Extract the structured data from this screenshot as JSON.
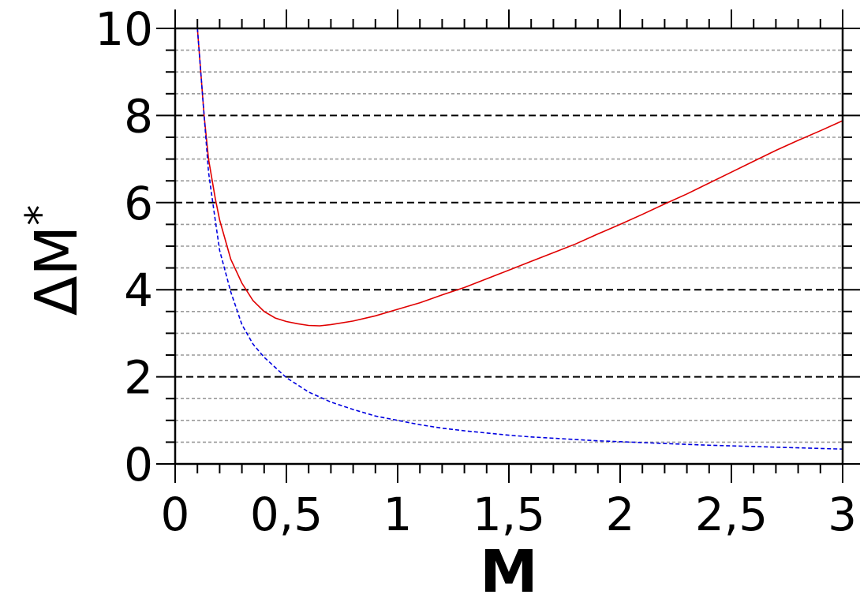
{
  "chart_data": {
    "type": "line",
    "xlabel": "M",
    "ylabel": "ΔM",
    "ylabel_superscript": "*",
    "xlim": [
      0,
      3
    ],
    "ylim": [
      0,
      10
    ],
    "x_ticks": [
      "0",
      "0,5",
      "1",
      "1,5",
      "2",
      "2,5",
      "3"
    ],
    "y_ticks": [
      "0",
      "2",
      "4",
      "6",
      "8",
      "10"
    ],
    "grid": {
      "major_y": [
        2,
        4,
        6,
        8
      ],
      "minor_y_step": 0.5
    },
    "series": [
      {
        "color": "#e00000",
        "style": "solid",
        "points": [
          [
            0.1,
            10.0
          ],
          [
            0.13,
            8.0
          ],
          [
            0.15,
            7.0
          ],
          [
            0.18,
            6.1
          ],
          [
            0.2,
            5.6
          ],
          [
            0.25,
            4.7
          ],
          [
            0.3,
            4.15
          ],
          [
            0.35,
            3.75
          ],
          [
            0.4,
            3.5
          ],
          [
            0.45,
            3.35
          ],
          [
            0.5,
            3.27
          ],
          [
            0.55,
            3.22
          ],
          [
            0.6,
            3.18
          ],
          [
            0.65,
            3.17
          ],
          [
            0.7,
            3.2
          ],
          [
            0.8,
            3.28
          ],
          [
            0.9,
            3.4
          ],
          [
            1.0,
            3.55
          ],
          [
            1.1,
            3.7
          ],
          [
            1.2,
            3.88
          ],
          [
            1.3,
            4.05
          ],
          [
            1.4,
            4.25
          ],
          [
            1.5,
            4.45
          ],
          [
            1.6,
            4.65
          ],
          [
            1.7,
            4.85
          ],
          [
            1.8,
            5.05
          ],
          [
            1.9,
            5.28
          ],
          [
            2.0,
            5.5
          ],
          [
            2.1,
            5.73
          ],
          [
            2.2,
            5.97
          ],
          [
            2.3,
            6.2
          ],
          [
            2.4,
            6.45
          ],
          [
            2.5,
            6.7
          ],
          [
            2.6,
            6.95
          ],
          [
            2.7,
            7.2
          ],
          [
            2.8,
            7.43
          ],
          [
            2.9,
            7.65
          ],
          [
            3.0,
            7.88
          ]
        ]
      },
      {
        "color": "#0000e0",
        "style": "dashed",
        "points": [
          [
            0.1,
            10.0
          ],
          [
            0.13,
            8.0
          ],
          [
            0.15,
            6.7
          ],
          [
            0.18,
            5.6
          ],
          [
            0.2,
            4.9
          ],
          [
            0.25,
            3.95
          ],
          [
            0.3,
            3.2
          ],
          [
            0.35,
            2.75
          ],
          [
            0.4,
            2.45
          ],
          [
            0.5,
            1.98
          ],
          [
            0.6,
            1.65
          ],
          [
            0.7,
            1.42
          ],
          [
            0.8,
            1.25
          ],
          [
            0.9,
            1.1
          ],
          [
            1.0,
            1.0
          ],
          [
            1.1,
            0.9
          ],
          [
            1.2,
            0.82
          ],
          [
            1.3,
            0.76
          ],
          [
            1.4,
            0.71
          ],
          [
            1.5,
            0.66
          ],
          [
            1.6,
            0.62
          ],
          [
            1.7,
            0.59
          ],
          [
            1.8,
            0.56
          ],
          [
            1.9,
            0.53
          ],
          [
            2.0,
            0.51
          ],
          [
            2.2,
            0.47
          ],
          [
            2.4,
            0.43
          ],
          [
            2.6,
            0.4
          ],
          [
            2.8,
            0.37
          ],
          [
            3.0,
            0.34
          ]
        ]
      }
    ]
  }
}
